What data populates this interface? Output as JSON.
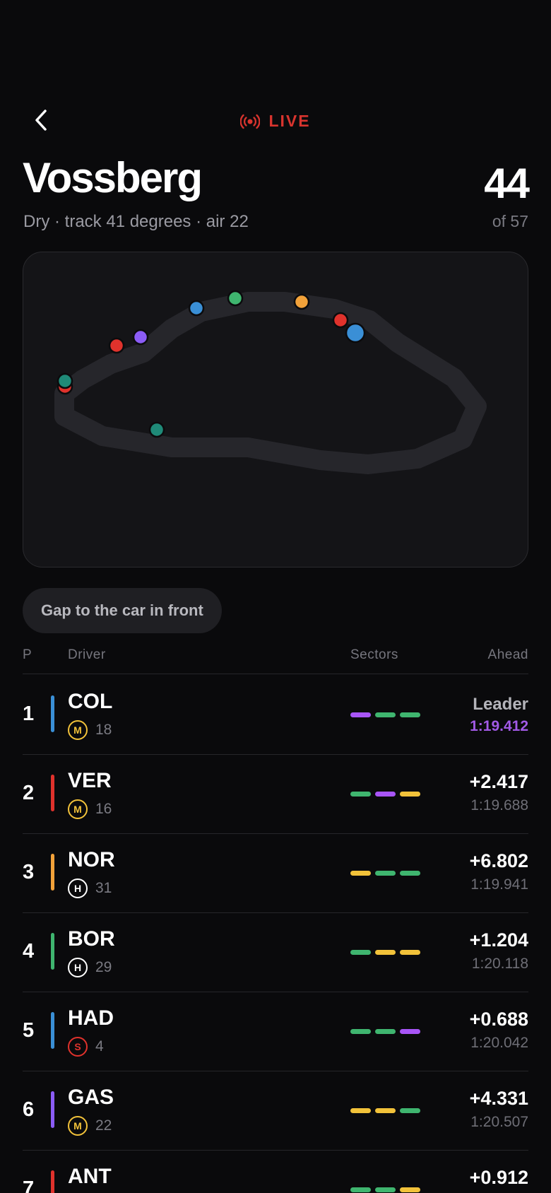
{
  "header": {
    "back_icon": "chevron-left-icon",
    "live_label": "LIVE",
    "live_icon": "broadcast-icon",
    "race_name": "Vossberg",
    "conditions": "Dry · track 41 degrees · air 22",
    "lap_current": "44",
    "lap_total": "of 57"
  },
  "colors": {
    "live": "#d8342e",
    "background": "#0a0a0c",
    "sector_purple": "#a855f7",
    "sector_green": "#3fb56f",
    "sector_yellow": "#f2c23a",
    "tyre_medium": "#f2c23a",
    "tyre_hard": "#ffffff",
    "tyre_soft": "#e0322c"
  },
  "track_map": {
    "cars": [
      {
        "color": "#3a8fd6",
        "emphasized": false
      },
      {
        "color": "#3fb56f",
        "emphasized": false
      },
      {
        "color": "#f2a23a",
        "emphasized": false
      },
      {
        "color": "#e0322c",
        "emphasized": false
      },
      {
        "color": "#3a8fd6",
        "emphasized": true
      },
      {
        "color": "#e0322c",
        "emphasized": false
      },
      {
        "color": "#8b5cf6",
        "emphasized": false
      },
      {
        "color": "#e0322c",
        "emphasized": false
      },
      {
        "color": "#1f8a78",
        "emphasized": false
      },
      {
        "color": "#1f8a78",
        "emphasized": false
      }
    ]
  },
  "chip": {
    "label": "Gap to the car in front"
  },
  "table": {
    "headers": {
      "p": "P",
      "driver": "Driver",
      "sectors": "Sectors",
      "ahead": "Ahead"
    },
    "rows": [
      {
        "pos": "1",
        "code": "COL",
        "team_color": "#3a8fd6",
        "tyre": "M",
        "tyre_color": "#f2c23a",
        "tyre_age": "18",
        "sectors": [
          "purple",
          "green",
          "green"
        ],
        "gap": "Leader",
        "laptime": "1:19.412",
        "leader": true
      },
      {
        "pos": "2",
        "code": "VER",
        "team_color": "#e0322c",
        "tyre": "M",
        "tyre_color": "#f2c23a",
        "tyre_age": "16",
        "sectors": [
          "green",
          "purple",
          "yellow"
        ],
        "gap": "+2.417",
        "laptime": "1:19.688",
        "leader": false
      },
      {
        "pos": "3",
        "code": "NOR",
        "team_color": "#f2a23a",
        "tyre": "H",
        "tyre_color": "#ffffff",
        "tyre_age": "31",
        "sectors": [
          "yellow",
          "green",
          "green"
        ],
        "gap": "+6.802",
        "laptime": "1:19.941",
        "leader": false
      },
      {
        "pos": "4",
        "code": "BOR",
        "team_color": "#3fb56f",
        "tyre": "H",
        "tyre_color": "#ffffff",
        "tyre_age": "29",
        "sectors": [
          "green",
          "yellow",
          "yellow"
        ],
        "gap": "+1.204",
        "laptime": "1:20.118",
        "leader": false
      },
      {
        "pos": "5",
        "code": "HAD",
        "team_color": "#3a8fd6",
        "tyre": "S",
        "tyre_color": "#e0322c",
        "tyre_age": "4",
        "sectors": [
          "green",
          "green",
          "purple"
        ],
        "gap": "+0.688",
        "laptime": "1:20.042",
        "leader": false
      },
      {
        "pos": "6",
        "code": "GAS",
        "team_color": "#8b5cf6",
        "tyre": "M",
        "tyre_color": "#f2c23a",
        "tyre_age": "22",
        "sectors": [
          "yellow",
          "yellow",
          "green"
        ],
        "gap": "+4.331",
        "laptime": "1:20.507",
        "leader": false
      },
      {
        "pos": "7",
        "code": "ANT",
        "team_color": "#e0322c",
        "tyre": "",
        "tyre_color": "#f2c23a",
        "tyre_age": "",
        "sectors": [
          "green",
          "green",
          "yellow"
        ],
        "gap": "+0.912",
        "laptime": "",
        "leader": false
      }
    ]
  }
}
